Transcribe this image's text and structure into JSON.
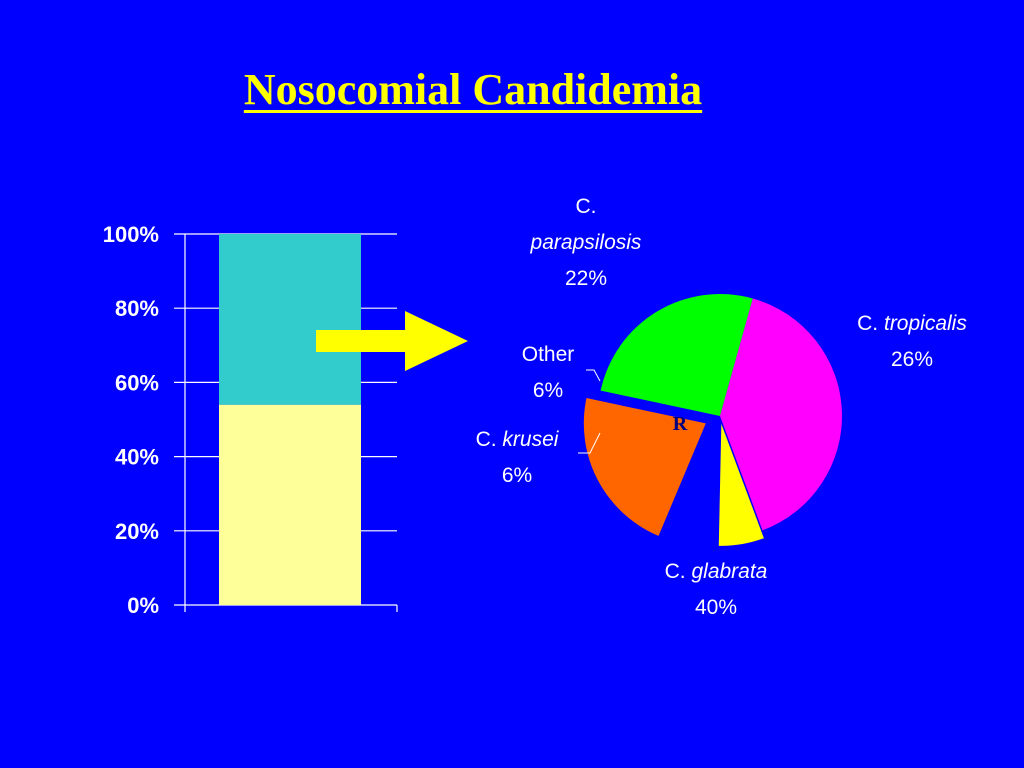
{
  "title": "Nosocomial Candidemia",
  "colors": {
    "background": "#0000ff",
    "title": "#ffff00",
    "arrow": "#ffff00",
    "axis": "#ffffff"
  },
  "chart_data": [
    {
      "type": "bar",
      "stacked": true,
      "categories": [
        ""
      ],
      "series": [
        {
          "name": "",
          "values": [
            54
          ],
          "color": "#ffff99"
        },
        {
          "name": "",
          "values": [
            46
          ],
          "color": "#33cccc"
        }
      ],
      "ylim": [
        0,
        100
      ],
      "yticks": [
        "0%",
        "20%",
        "40%",
        "60%",
        "80%",
        "100%"
      ],
      "grid": true
    },
    {
      "type": "pie",
      "slices": [
        {
          "label_prefix": "C. ",
          "label_species": "tropicalis",
          "label_lines": [
            "C. tropicalis",
            "26%"
          ],
          "value": 26,
          "percent_label": "26%",
          "color": "#00ff00"
        },
        {
          "label_prefix": "C. ",
          "label_species": "glabrata",
          "label_lines": [
            "C. glabrata",
            "40%"
          ],
          "value": 40,
          "percent_label": "40%",
          "color": "#ff00ff"
        },
        {
          "label_prefix": "C. ",
          "label_species": "krusei",
          "label_lines": [
            "C. krusei",
            "6%"
          ],
          "value": 6,
          "percent_label": "6%",
          "color": "#ffff00"
        },
        {
          "label_prefix": "",
          "label_species": "Other",
          "label_lines": [
            "Other",
            "6%"
          ],
          "value": 6,
          "percent_label": "6%",
          "color": "#0000ff"
        },
        {
          "label_prefix": "C.",
          "label_species": "parapsilosis",
          "label_lines": [
            "C.",
            "parapsilosis",
            "22%"
          ],
          "value": 22,
          "percent_label": "22%",
          "color": "#ff6600"
        }
      ],
      "inner_marker": "R"
    }
  ]
}
